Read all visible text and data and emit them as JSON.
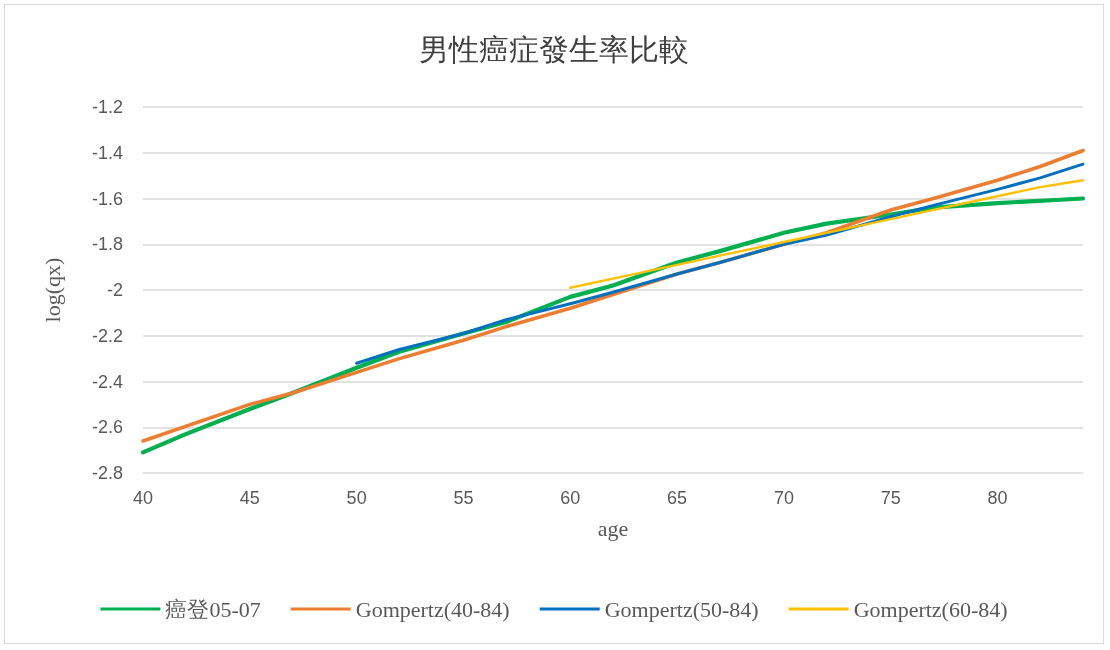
{
  "chart_data": {
    "type": "line",
    "title": "男性癌症發生率比較",
    "xlabel": "age",
    "ylabel": "log(qx)",
    "xlim": [
      40,
      84
    ],
    "xticks": [
      40,
      45,
      50,
      55,
      60,
      65,
      70,
      75,
      80
    ],
    "ylim": [
      -2.8,
      -1.2
    ],
    "yticks": [
      -2.8,
      -2.6,
      -2.4,
      -2.2,
      -2,
      -1.8,
      -1.6,
      -1.4,
      -1.2
    ],
    "grid": "y",
    "legend": "bottom",
    "marker": "none",
    "line_style": "solid",
    "series": [
      {
        "name": "癌登05-07",
        "color": "#00b050",
        "x": [
          40,
          42,
          45,
          47,
          50,
          52,
          55,
          57,
          60,
          62,
          65,
          67,
          70,
          72,
          75,
          77,
          80,
          84
        ],
        "values": [
          -2.71,
          -2.63,
          -2.52,
          -2.45,
          -2.34,
          -2.27,
          -2.19,
          -2.14,
          -2.03,
          -1.98,
          -1.88,
          -1.83,
          -1.75,
          -1.71,
          -1.67,
          -1.64,
          -1.62,
          -1.6
        ]
      },
      {
        "name": "Gompertz(40-84)",
        "color": "#ed7d31",
        "x": [
          40,
          45,
          47,
          50,
          52,
          55,
          57,
          60,
          62,
          65,
          67,
          70,
          72,
          75,
          77,
          80,
          82,
          84
        ],
        "values": [
          -2.66,
          -2.5,
          -2.45,
          -2.36,
          -2.3,
          -2.22,
          -2.16,
          -2.08,
          -2.02,
          -1.93,
          -1.88,
          -1.8,
          -1.75,
          -1.65,
          -1.6,
          -1.52,
          -1.46,
          -1.39
        ]
      },
      {
        "name": "Gompertz(50-84)",
        "color": "#0070c0",
        "x": [
          50,
          52,
          55,
          57,
          60,
          62,
          65,
          67,
          70,
          72,
          75,
          77,
          80,
          82,
          84
        ],
        "values": [
          -2.32,
          -2.26,
          -2.19,
          -2.13,
          -2.06,
          -2.01,
          -1.93,
          -1.88,
          -1.8,
          -1.76,
          -1.68,
          -1.63,
          -1.56,
          -1.51,
          -1.45
        ]
      },
      {
        "name": "Gompertz(60-84)",
        "color": "#ffc000",
        "x": [
          60,
          62,
          65,
          67,
          70,
          72,
          75,
          77,
          80,
          82,
          84
        ],
        "values": [
          -1.99,
          -1.95,
          -1.89,
          -1.85,
          -1.79,
          -1.75,
          -1.69,
          -1.65,
          -1.59,
          -1.55,
          -1.52
        ]
      }
    ]
  }
}
